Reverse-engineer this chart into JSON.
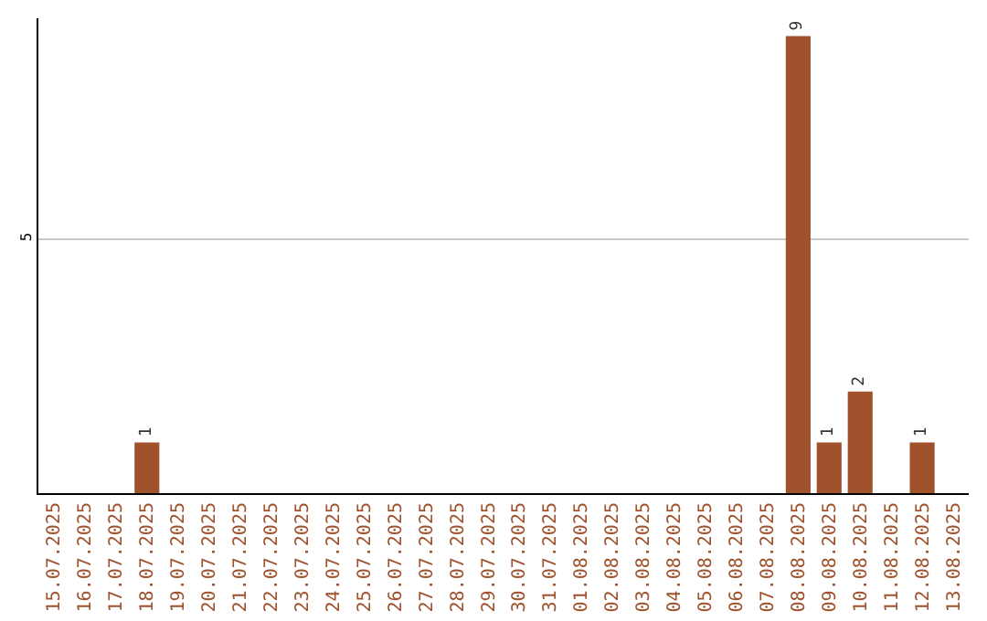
{
  "chart_data": {
    "type": "bar",
    "categories": [
      "15.07.2025",
      "16.07.2025",
      "17.07.2025",
      "18.07.2025",
      "19.07.2025",
      "20.07.2025",
      "21.07.2025",
      "22.07.2025",
      "23.07.2025",
      "24.07.2025",
      "25.07.2025",
      "26.07.2025",
      "27.07.2025",
      "28.07.2025",
      "29.07.2025",
      "30.07.2025",
      "31.07.2025",
      "01.08.2025",
      "02.08.2025",
      "03.08.2025",
      "04.08.2025",
      "05.08.2025",
      "06.08.2025",
      "07.08.2025",
      "08.08.2025",
      "09.08.2025",
      "10.08.2025",
      "11.08.2025",
      "12.08.2025",
      "13.08.2025"
    ],
    "values": [
      0,
      0,
      0,
      1,
      0,
      0,
      0,
      0,
      0,
      0,
      0,
      0,
      0,
      0,
      0,
      0,
      0,
      0,
      0,
      0,
      0,
      0,
      0,
      0,
      9,
      1,
      2,
      0,
      1,
      0
    ],
    "value_labels": [
      null,
      null,
      null,
      "1",
      null,
      null,
      null,
      null,
      null,
      null,
      null,
      null,
      null,
      null,
      null,
      null,
      null,
      null,
      null,
      null,
      null,
      null,
      null,
      null,
      "9",
      "1",
      "2",
      null,
      "1",
      null
    ],
    "color": "#a0522d",
    "ylim": [
      0,
      9.35
    ],
    "yticks": [
      5
    ],
    "grid": "y",
    "legend": false
  }
}
